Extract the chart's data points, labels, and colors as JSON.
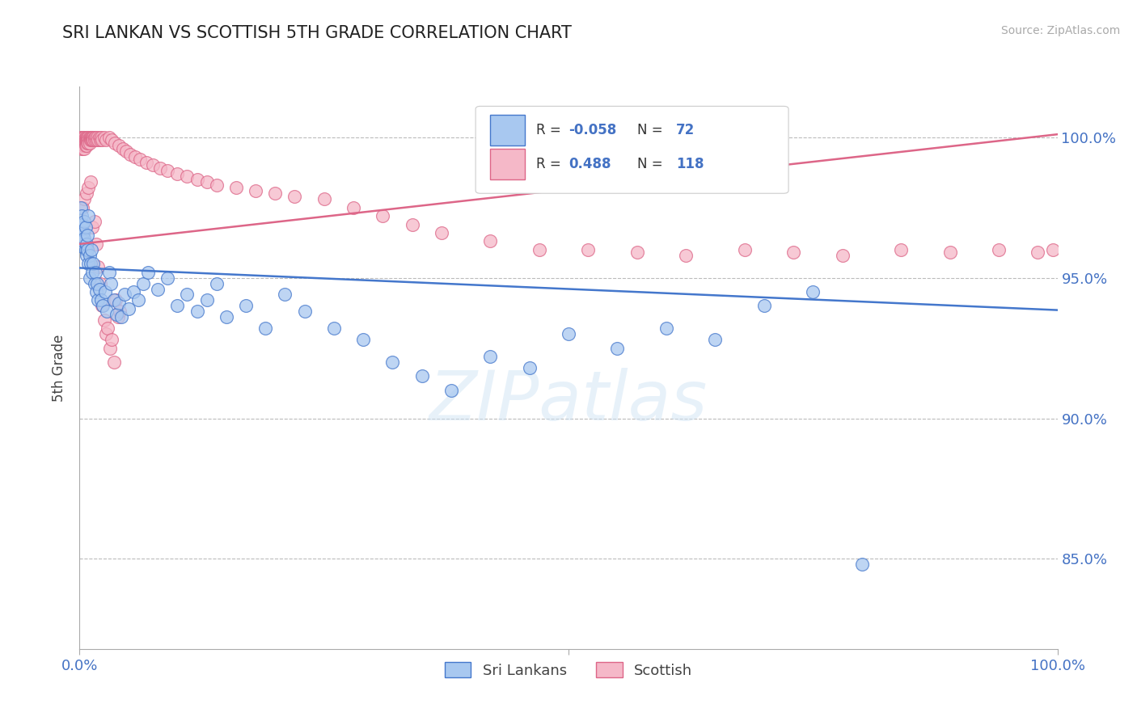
{
  "title": "SRI LANKAN VS SCOTTISH 5TH GRADE CORRELATION CHART",
  "source_text": "Source: ZipAtlas.com",
  "ylabel": "5th Grade",
  "xlim": [
    0.0,
    1.0
  ],
  "ylim": [
    0.818,
    1.018
  ],
  "yticks": [
    0.85,
    0.9,
    0.95,
    1.0
  ],
  "ytick_labels": [
    "85.0%",
    "90.0%",
    "95.0%",
    "100.0%"
  ],
  "xticks": [
    0.0,
    0.5,
    1.0
  ],
  "xtick_labels": [
    "0.0%",
    "",
    "100.0%"
  ],
  "blue_color": "#A8C8F0",
  "pink_color": "#F5B8C8",
  "blue_line_color": "#4477CC",
  "pink_line_color": "#DD6688",
  "legend_r_blue": "-0.058",
  "legend_n_blue": "72",
  "legend_r_pink": "0.488",
  "legend_n_pink": "118",
  "legend_label_blue": "Sri Lankans",
  "legend_label_pink": "Scottish",
  "watermark": "ZIPatlas",
  "blue_line_y0": 0.9535,
  "blue_line_y1": 0.9385,
  "pink_line_y0": 0.962,
  "pink_line_y1": 1.001,
  "blue_scatter_x": [
    0.001,
    0.002,
    0.002,
    0.003,
    0.003,
    0.003,
    0.004,
    0.004,
    0.005,
    0.005,
    0.006,
    0.006,
    0.007,
    0.007,
    0.008,
    0.008,
    0.009,
    0.009,
    0.01,
    0.01,
    0.011,
    0.012,
    0.013,
    0.014,
    0.015,
    0.016,
    0.017,
    0.018,
    0.019,
    0.02,
    0.022,
    0.024,
    0.026,
    0.028,
    0.03,
    0.032,
    0.035,
    0.038,
    0.04,
    0.043,
    0.046,
    0.05,
    0.055,
    0.06,
    0.065,
    0.07,
    0.08,
    0.09,
    0.1,
    0.11,
    0.12,
    0.13,
    0.14,
    0.15,
    0.17,
    0.19,
    0.21,
    0.23,
    0.26,
    0.29,
    0.32,
    0.35,
    0.38,
    0.42,
    0.46,
    0.5,
    0.55,
    0.6,
    0.65,
    0.7,
    0.75,
    0.8
  ],
  "blue_scatter_y": [
    0.975,
    0.972,
    0.968,
    0.969,
    0.965,
    0.961,
    0.966,
    0.963,
    0.97,
    0.964,
    0.968,
    0.96,
    0.962,
    0.958,
    0.965,
    0.96,
    0.972,
    0.955,
    0.958,
    0.95,
    0.955,
    0.96,
    0.952,
    0.955,
    0.948,
    0.952,
    0.945,
    0.948,
    0.942,
    0.946,
    0.942,
    0.94,
    0.945,
    0.938,
    0.952,
    0.948,
    0.942,
    0.937,
    0.941,
    0.936,
    0.944,
    0.939,
    0.945,
    0.942,
    0.948,
    0.952,
    0.946,
    0.95,
    0.94,
    0.944,
    0.938,
    0.942,
    0.948,
    0.936,
    0.94,
    0.932,
    0.944,
    0.938,
    0.932,
    0.928,
    0.92,
    0.915,
    0.91,
    0.922,
    0.918,
    0.93,
    0.925,
    0.932,
    0.928,
    0.94,
    0.945,
    0.848
  ],
  "pink_scatter_x": [
    0.001,
    0.001,
    0.001,
    0.002,
    0.002,
    0.002,
    0.002,
    0.003,
    0.003,
    0.003,
    0.003,
    0.003,
    0.004,
    0.004,
    0.004,
    0.004,
    0.005,
    0.005,
    0.005,
    0.005,
    0.005,
    0.006,
    0.006,
    0.006,
    0.006,
    0.007,
    0.007,
    0.007,
    0.007,
    0.008,
    0.008,
    0.008,
    0.009,
    0.009,
    0.009,
    0.01,
    0.01,
    0.01,
    0.011,
    0.011,
    0.012,
    0.012,
    0.013,
    0.013,
    0.014,
    0.014,
    0.015,
    0.015,
    0.016,
    0.017,
    0.018,
    0.019,
    0.02,
    0.021,
    0.022,
    0.023,
    0.025,
    0.027,
    0.03,
    0.033,
    0.036,
    0.04,
    0.044,
    0.048,
    0.052,
    0.057,
    0.062,
    0.068,
    0.075,
    0.082,
    0.09,
    0.1,
    0.11,
    0.12,
    0.13,
    0.14,
    0.16,
    0.18,
    0.2,
    0.22,
    0.25,
    0.28,
    0.31,
    0.34,
    0.37,
    0.42,
    0.47,
    0.52,
    0.57,
    0.62,
    0.68,
    0.73,
    0.78,
    0.84,
    0.89,
    0.94,
    0.98,
    0.995,
    0.003,
    0.005,
    0.007,
    0.009,
    0.011,
    0.013,
    0.015,
    0.017,
    0.019,
    0.021,
    0.023,
    0.025,
    0.027,
    0.029,
    0.031,
    0.033,
    0.035,
    0.037,
    0.039,
    0.041
  ],
  "pink_scatter_y": [
    0.998,
    1.0,
    0.997,
    0.999,
    1.0,
    0.998,
    0.996,
    1.0,
    0.999,
    0.998,
    0.997,
    0.996,
    1.0,
    0.999,
    0.998,
    0.997,
    1.0,
    0.999,
    0.998,
    0.997,
    0.996,
    1.0,
    0.999,
    0.998,
    0.997,
    1.0,
    0.999,
    0.998,
    0.997,
    1.0,
    0.999,
    0.998,
    1.0,
    0.999,
    0.998,
    1.0,
    0.999,
    0.998,
    1.0,
    0.999,
    1.0,
    0.999,
    1.0,
    0.999,
    1.0,
    0.999,
    1.0,
    0.999,
    1.0,
    0.999,
    1.0,
    0.999,
    1.0,
    0.999,
    1.0,
    0.999,
    1.0,
    0.999,
    1.0,
    0.999,
    0.998,
    0.997,
    0.996,
    0.995,
    0.994,
    0.993,
    0.992,
    0.991,
    0.99,
    0.989,
    0.988,
    0.987,
    0.986,
    0.985,
    0.984,
    0.983,
    0.982,
    0.981,
    0.98,
    0.979,
    0.978,
    0.975,
    0.972,
    0.969,
    0.966,
    0.963,
    0.96,
    0.96,
    0.959,
    0.958,
    0.96,
    0.959,
    0.958,
    0.96,
    0.959,
    0.96,
    0.959,
    0.96,
    0.975,
    0.978,
    0.98,
    0.982,
    0.984,
    0.968,
    0.97,
    0.962,
    0.954,
    0.948,
    0.94,
    0.935,
    0.93,
    0.932,
    0.925,
    0.928,
    0.92,
    0.942,
    0.936,
    0.938
  ]
}
